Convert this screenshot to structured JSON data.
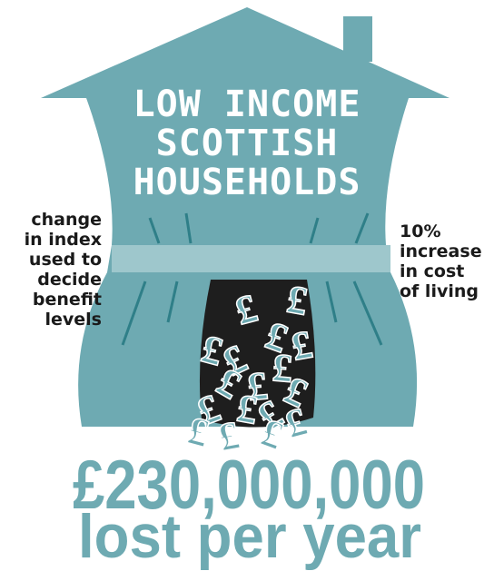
{
  "title_lines": [
    "LOW INCOME",
    "SCOTTISH",
    "HOUSEHOLDS"
  ],
  "left_note_lines": [
    "change",
    "in index",
    "used to",
    "decide",
    "benefit",
    "levels"
  ],
  "right_note_lines": [
    "10%",
    "increase",
    "in cost",
    "of living"
  ],
  "pound_symbol": "£",
  "amount": "£230,000,000",
  "amount_caption": "lost per year"
}
